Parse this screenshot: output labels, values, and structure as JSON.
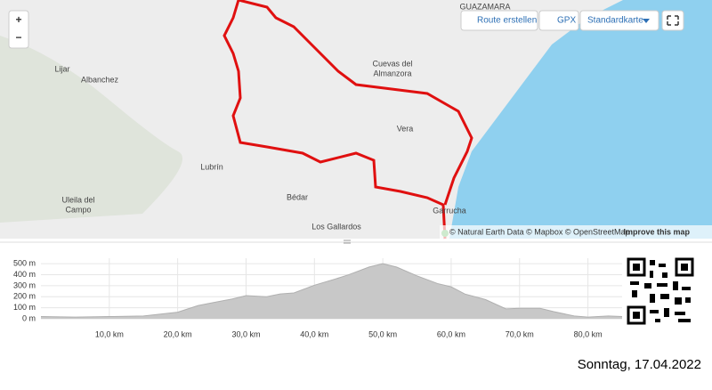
{
  "map": {
    "zoom_in": "+",
    "zoom_out": "−",
    "buttons": [
      "Route erstellen",
      "GPX",
      "Standardkarte"
    ],
    "places": [
      {
        "lines": [
          "GUAZAMARA"
        ]
      },
      {
        "lines": [
          "Lijar"
        ]
      },
      {
        "lines": [
          "Albanchez"
        ]
      },
      {
        "lines": [
          "Cuevas del",
          "Almanzora"
        ]
      },
      {
        "lines": [
          "Vera"
        ]
      },
      {
        "lines": [
          "Lubrín"
        ]
      },
      {
        "lines": [
          "Uleila del",
          "Campo"
        ]
      },
      {
        "lines": [
          "Bédar"
        ]
      },
      {
        "lines": [
          "Los Gallardos"
        ]
      },
      {
        "lines": [
          "Garrucha"
        ]
      }
    ],
    "attribution": "© Natural Earth Data © Mapbox © OpenStreetMap",
    "improve": "Improve this map"
  },
  "chart_data": {
    "type": "area",
    "color": "#c8c8c8",
    "x": [
      0,
      5,
      10,
      15,
      20,
      23,
      25,
      28,
      30,
      33,
      35,
      37,
      40,
      43,
      45,
      48,
      50,
      52,
      55,
      58,
      60,
      62,
      65,
      68,
      70,
      73,
      75,
      78,
      80,
      83,
      85
    ],
    "values": [
      20,
      15,
      20,
      25,
      60,
      120,
      145,
      180,
      210,
      200,
      225,
      235,
      305,
      360,
      400,
      470,
      500,
      470,
      390,
      320,
      290,
      225,
      175,
      90,
      95,
      95,
      65,
      25,
      15,
      25,
      20
    ],
    "xlim": [
      0,
      85
    ],
    "ylim": [
      0,
      550
    ],
    "xticks": [
      {
        "value": 10,
        "label": "10,0 km"
      },
      {
        "value": 20,
        "label": "20,0 km"
      },
      {
        "value": 30,
        "label": "30,0 km"
      },
      {
        "value": 40,
        "label": "40,0 km"
      },
      {
        "value": 50,
        "label": "50,0 km"
      },
      {
        "value": 60,
        "label": "60,0 km"
      },
      {
        "value": 70,
        "label": "70,0 km"
      },
      {
        "value": 80,
        "label": "80,0 km"
      }
    ],
    "yticks": [
      {
        "value": 0,
        "label": "0 m"
      },
      {
        "value": 100,
        "label": "100 m"
      },
      {
        "value": 200,
        "label": "200 m"
      },
      {
        "value": 300,
        "label": "300 m"
      },
      {
        "value": 400,
        "label": "400 m"
      },
      {
        "value": 500,
        "label": "500 m"
      }
    ],
    "grid": true
  },
  "footer": {
    "date": "Sonntag, 17.04.2022"
  }
}
